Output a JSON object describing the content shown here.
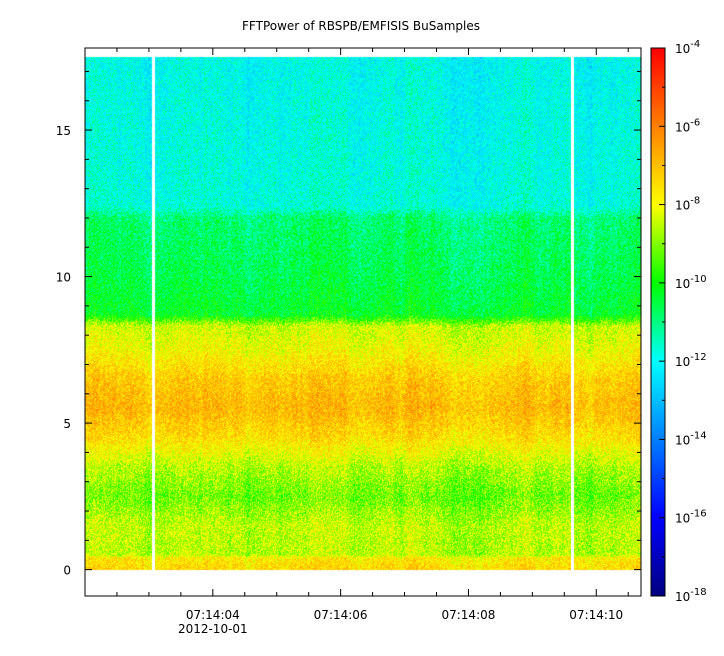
{
  "chart_data": {
    "type": "heatmap",
    "title": "FFTPower of RBSPB/EMFISIS  BuSamples",
    "xlabel": "",
    "ylabel": "",
    "x_ticks": [
      "07:14:04",
      "07:14:06",
      "07:14:08",
      "07:14:10"
    ],
    "x_tick_values_sec": [
      4,
      6,
      8,
      10
    ],
    "x_date_label": "2012-10-01",
    "xlim_sec": [
      2.0,
      10.7
    ],
    "ylim": [
      -0.9,
      17.8
    ],
    "y_ticks": [
      "0",
      "5",
      "10",
      "15"
    ],
    "y_tick_values": [
      0,
      5,
      10,
      15
    ],
    "data_extent": {
      "x_start_sec": 2.0,
      "x_end_sec": 10.7,
      "y_min": 0.0,
      "y_max": 17.5
    },
    "data_gaps_sec": [
      [
        3.05,
        3.1
      ],
      [
        9.6,
        9.65
      ]
    ],
    "frequency_profile_log10_power": [
      {
        "y": 0.0,
        "v": -7.4
      },
      {
        "y": 0.4,
        "v": -7.7
      },
      {
        "y": 0.5,
        "v": -8.6
      },
      {
        "y": 1.5,
        "v": -8.5
      },
      {
        "y": 2.5,
        "v": -9.2
      },
      {
        "y": 3.5,
        "v": -8.6
      },
      {
        "y": 4.5,
        "v": -7.5
      },
      {
        "y": 5.5,
        "v": -6.9
      },
      {
        "y": 6.5,
        "v": -7.2
      },
      {
        "y": 7.5,
        "v": -8.0
      },
      {
        "y": 8.3,
        "v": -8.4
      },
      {
        "y": 8.7,
        "v": -10.3
      },
      {
        "y": 10.0,
        "v": -10.6
      },
      {
        "y": 12.0,
        "v": -10.9
      },
      {
        "y": 12.4,
        "v": -11.8
      },
      {
        "y": 15.0,
        "v": -11.9
      },
      {
        "y": 17.5,
        "v": -12.0
      }
    ],
    "colorbar": {
      "scale": "log",
      "range_exponent": [
        -18,
        -4
      ],
      "tick_base": "10",
      "tick_exponents": [
        "-4",
        "-6",
        "-8",
        "-10",
        "-12",
        "-14",
        "-16",
        "-18"
      ]
    },
    "colormap": [
      "#00007f",
      "#0000ff",
      "#007fff",
      "#00ffff",
      "#00ff00",
      "#ffff00",
      "#ff7f00",
      "#ff0000"
    ]
  }
}
